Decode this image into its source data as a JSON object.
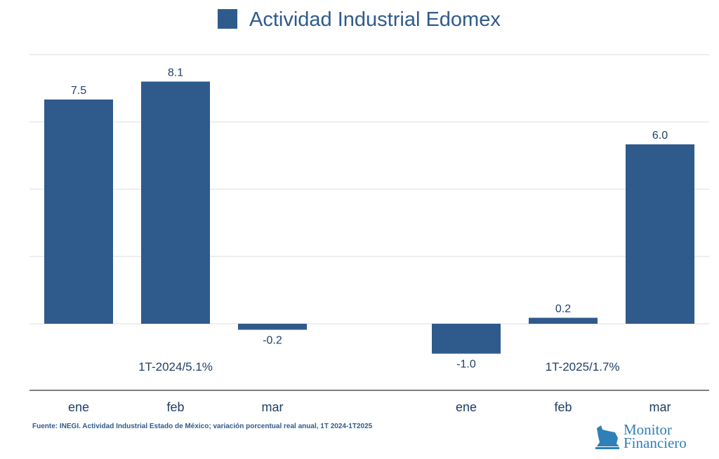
{
  "chart_data": {
    "type": "bar",
    "title": "Actividad Industrial Edomex",
    "legend": [
      {
        "name": "Actividad Industrial Edomex",
        "color": "#2f5a8c"
      }
    ],
    "legend_placement": "top",
    "categories": [
      "ene",
      "feb",
      "mar",
      "",
      "ene",
      "feb",
      "mar"
    ],
    "values": [
      7.5,
      8.1,
      -0.2,
      null,
      -1.0,
      0.2,
      6.0
    ],
    "data_labels": [
      "7.5",
      "8.1",
      "-0.2",
      "",
      "-1.0",
      "0.2",
      "6.0"
    ],
    "group_labels": [
      "1T-2024/5.1%",
      "1T-2025/1.7%"
    ],
    "ylim": [
      -2.25,
      9
    ],
    "grid": true,
    "bar_color": "#2f5a8c"
  },
  "source": "Fuente: INEGI. Actividad Industrial Estado de México; variación porcentual real anual, 1T 2024-1T2025",
  "logo": {
    "line1": "Monitor",
    "line2": "Financiero"
  }
}
